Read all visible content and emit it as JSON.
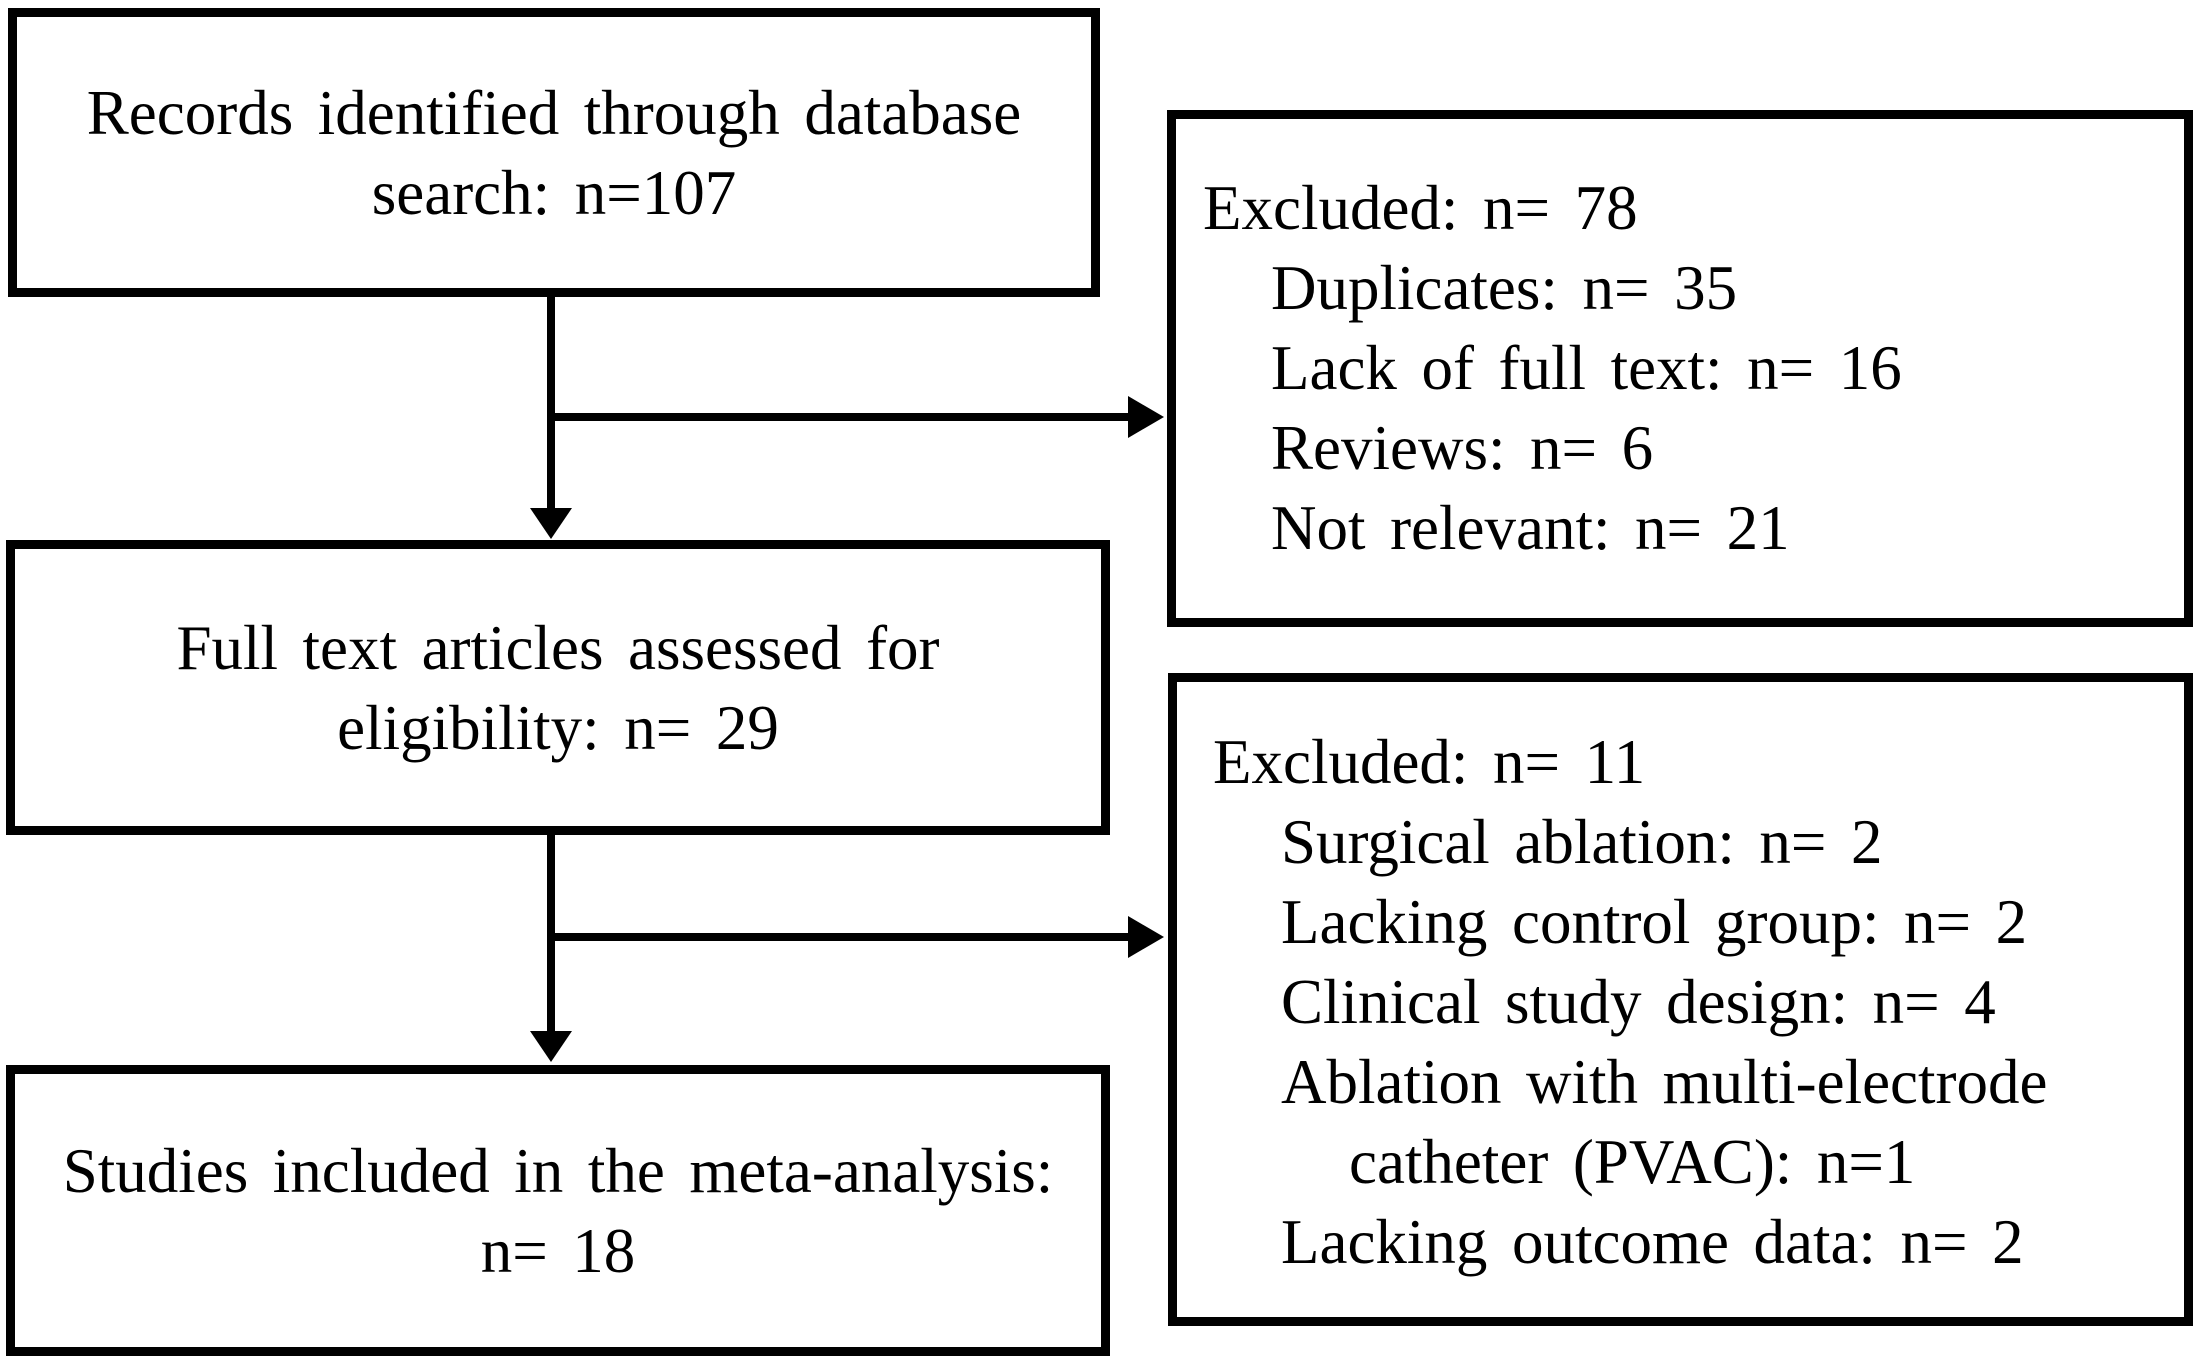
{
  "figure": {
    "type": "study-selection-flow-diagram",
    "background_color": "#ffffff",
    "line_color": "#000000"
  },
  "identified": {
    "line1": "Records identified through database",
    "line2": "search: n=107"
  },
  "excluded1": {
    "title": "Excluded: n= 78",
    "items": [
      "Duplicates: n= 35",
      "Lack of full text: n= 16",
      "Reviews: n= 6",
      "Not relevant: n= 21"
    ]
  },
  "assessed": {
    "line1": "Full text articles assessed for",
    "line2": "eligibility: n= 29"
  },
  "excluded2": {
    "title": "Excluded: n= 11",
    "items": [
      "Surgical ablation: n= 2",
      "Lacking control group: n= 2",
      "Clinical study design: n= 4",
      "Ablation with multi-electrode",
      "catheter (PVAC): n=1",
      "Lacking outcome data: n= 2"
    ]
  },
  "included": {
    "line1": "Studies included in the meta-analysis:",
    "line2": "n= 18"
  }
}
